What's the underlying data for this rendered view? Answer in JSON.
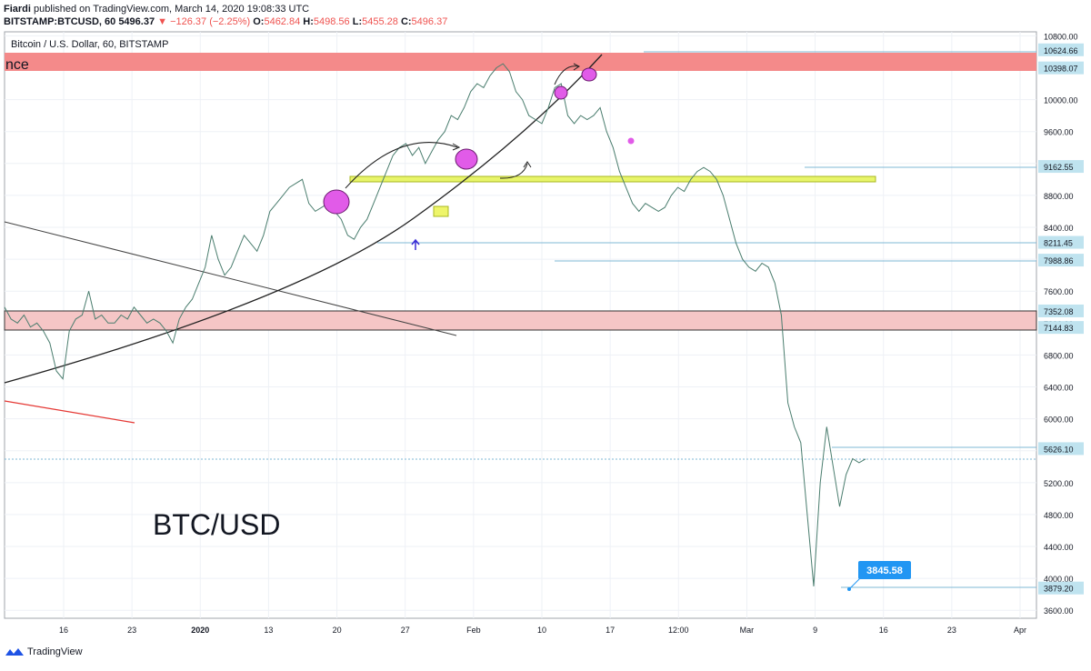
{
  "header": {
    "author": "Fiardi",
    "published_text": "published on TradingView.com, March 14, 2020 19:08:33 UTC",
    "symbol": "BITSTAMP:BTCUSD, 60",
    "last": "5496.37",
    "change": "▼ −126.37 (−2.25%)",
    "o_label": "O:",
    "o_value": "5462.84",
    "h_label": "H:",
    "h_value": "5498.56",
    "l_label": "L:",
    "l_value": "5455.28",
    "c_label": "C:",
    "c_value": "5496.37"
  },
  "legend": {
    "title": "Bitcoin / U.S. Dollar, 60, BITSTAMP"
  },
  "annotations": {
    "zone_label": "nce",
    "pair_text": "BTC/USD",
    "low_callout": "3845.58"
  },
  "footer": {
    "brand": "TradingView"
  },
  "colors": {
    "resistance_zone": "#f48a8a",
    "support_zone": "#f5c6c6",
    "yellow_zone": "#e8f56a",
    "circles": "#e15be8",
    "price_label_bg": "#bfe3ef",
    "callout_bg": "#2196f3",
    "trend_red": "#e53935",
    "curve": "#222222"
  },
  "chart_data": {
    "type": "line",
    "title": "Bitcoin / U.S. Dollar, 60, BITSTAMP",
    "ylim": [
      3500,
      10850
    ],
    "y_ticks": [
      3600,
      4000,
      4400,
      4800,
      5200,
      5600,
      6000,
      6400,
      6800,
      7200,
      7600,
      8000,
      8400,
      8800,
      9200,
      9600,
      10000,
      10400,
      10800
    ],
    "y_tick_labels": [
      "3600.00",
      "4000.00",
      "4400.00",
      "4800.00",
      "5200.00",
      "5600.00",
      "6000.00",
      "6400.00",
      "6800.00",
      "7200.00",
      "7600.00",
      "8000.00",
      "8400.00",
      "8800.00",
      "9200.00",
      "9600.00",
      "10000.00",
      "10400.00",
      "10800.00"
    ],
    "x_ticks": [
      "16",
      "23",
      "2020",
      "13",
      "20",
      "27",
      "Feb",
      "10",
      "17",
      "12:00",
      "Mar",
      "9",
      "16",
      "23",
      "Apr"
    ],
    "price_levels": [
      "10624.66",
      "10398.07",
      "9162.55",
      "8211.45",
      "7988.86",
      "7352.08",
      "7144.83",
      "5626.10",
      "3879.20"
    ],
    "series": [
      {
        "values": [
          7400,
          7250,
          7200,
          7300,
          7150,
          7200,
          7100,
          6950,
          6600,
          6500,
          7100,
          7250,
          7300,
          7600,
          7250,
          7300,
          7200,
          7200,
          7300,
          7250,
          7400,
          7300,
          7200,
          7250,
          7200,
          7100,
          6950,
          7250,
          7400,
          7500,
          7700,
          7900,
          8300,
          8000,
          7800,
          7900,
          8100,
          8300,
          8200,
          8100,
          8300,
          8600,
          8700,
          8800,
          8900,
          8950,
          9000,
          8700,
          8600,
          8650,
          8700,
          8600,
          8500,
          8300,
          8250,
          8400,
          8500,
          8700,
          8900,
          9100,
          9300,
          9400,
          9450,
          9300,
          9400,
          9200,
          9350,
          9500,
          9600,
          9800,
          9750,
          9900,
          10100,
          10200,
          10150,
          10300,
          10400,
          10450,
          10350,
          10100,
          10000,
          9800,
          9750,
          9700,
          9900,
          10150,
          10200,
          9800,
          9700,
          9800,
          9750,
          9800,
          9900,
          9600,
          9400,
          9100,
          8900,
          8700,
          8600,
          8700,
          8650,
          8600,
          8650,
          8800,
          8900,
          8850,
          9000,
          9100,
          9150,
          9100,
          9000,
          8800,
          8500,
          8200,
          8000,
          7900,
          7850,
          7950,
          7900,
          7700,
          7300,
          6200,
          5900,
          5700,
          4800,
          3900,
          5200,
          5900,
          5400,
          4900,
          5300,
          5500,
          5450,
          5496
        ]
      }
    ]
  }
}
